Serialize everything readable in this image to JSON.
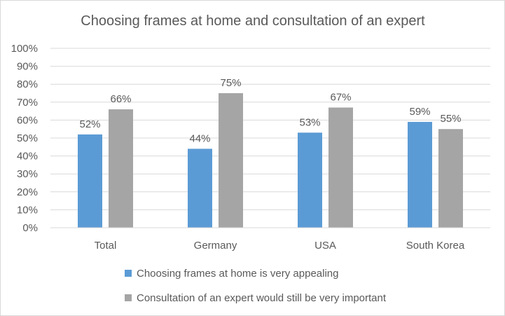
{
  "chart_data": {
    "type": "bar",
    "title": "Choosing frames at home and consultation of an expert",
    "categories": [
      "Total",
      "Germany",
      "USA",
      "South Korea"
    ],
    "series": [
      {
        "name": "Choosing frames at home is very appealing",
        "color": "#5b9bd5",
        "values": [
          52,
          44,
          53,
          59
        ],
        "labels": [
          "52%",
          "44%",
          "53%",
          "59%"
        ]
      },
      {
        "name": "Consultation of an expert would still be very important",
        "color": "#a5a5a5",
        "values": [
          66,
          75,
          67,
          55
        ],
        "labels": [
          "66%",
          "75%",
          "67%",
          "55%"
        ]
      }
    ],
    "ylim": [
      0,
      100
    ],
    "yticks": [
      "0%",
      "10%",
      "20%",
      "30%",
      "40%",
      "50%",
      "60%",
      "70%",
      "80%",
      "90%",
      "100%"
    ],
    "grid": true,
    "legend_position": "bottom",
    "gridline_color": "#d9d9d9"
  }
}
